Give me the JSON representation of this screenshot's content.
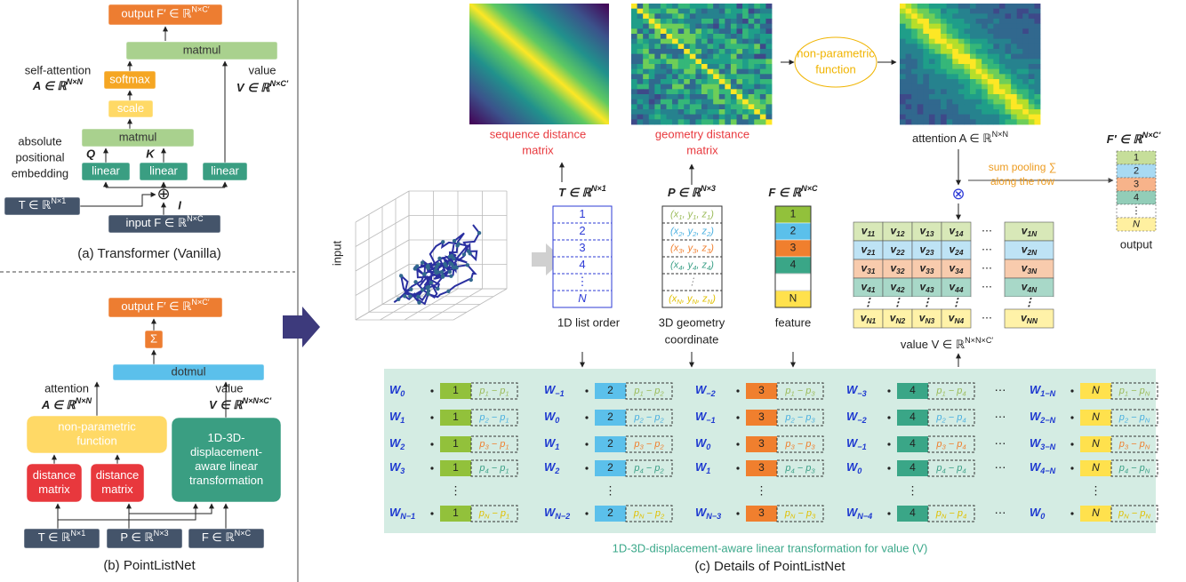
{
  "a": {
    "output": [
      {
        "t": "output F′ ∈ ℝ",
        "sup": "N×C′"
      }
    ],
    "matmul_top": "matmul",
    "softmax": "softmax",
    "scale": "scale",
    "matmul": "matmul",
    "linear": [
      "linear",
      "linear",
      "linear"
    ],
    "attn_label": "self-attention",
    "attn_math": [
      {
        "t": "A ∈ ℝ",
        "sup": "N×N"
      }
    ],
    "value_label": "value",
    "value_math": [
      {
        "t": "V ∈ ℝ",
        "sup": "N×C′"
      }
    ],
    "pos_label": [
      "absolute",
      "positional",
      "embedding"
    ],
    "q": "Q",
    "k": "K",
    "i": "I",
    "oplus": "⊕",
    "t_input": [
      {
        "t": "T ∈ ℝ",
        "sup": "N×1"
      }
    ],
    "f_input": [
      {
        "t": "input F ∈ ℝ",
        "sup": "N×C"
      }
    ],
    "caption": "(a) Transformer (Vanilla)"
  },
  "b": {
    "output": [
      {
        "t": "output F′ ∈ ℝ",
        "sup": "N×C′"
      }
    ],
    "sum": "Σ",
    "dotmul": "dotmul",
    "attn_label": "attention",
    "attn_math": [
      {
        "t": "A ∈ ℝ",
        "sup": "N×N"
      }
    ],
    "value_label": "value",
    "value_math": [
      {
        "t": "V ∈ ℝ",
        "sup": "N×N×C′"
      }
    ],
    "nonparam": [
      "non-parametric",
      "function"
    ],
    "transform": [
      "1D-3D-",
      "displacement-",
      "aware linear",
      "transformation"
    ],
    "dist": [
      [
        "distance",
        "matrix"
      ],
      [
        "distance",
        "matrix"
      ]
    ],
    "inputs": [
      [
        {
          "t": "T ∈ ℝ",
          "sup": "N×1"
        }
      ],
      [
        {
          "t": "P ∈ ℝ",
          "sup": "N×3"
        }
      ],
      [
        {
          "t": "F ∈ ℝ",
          "sup": "N×C"
        }
      ]
    ],
    "caption": "(b) PointListNet"
  },
  "c": {
    "seq_label": [
      "sequence distance",
      "matrix"
    ],
    "geo_label": [
      "geometry distance",
      "matrix"
    ],
    "nonparam": [
      "non-parametric",
      "function"
    ],
    "attention": [
      {
        "t": "attention A ∈ ℝ",
        "sup": "N×N"
      }
    ],
    "input_label": "input",
    "t_head": [
      {
        "t": "T ∈ ℝ",
        "sup": "N×1"
      }
    ],
    "t_cells": [
      "1",
      "2",
      "3",
      "4",
      "⋮",
      "N"
    ],
    "t_caption": "1D list order",
    "p_head": [
      {
        "t": "P ∈ ℝ",
        "sup": "N×3"
      }
    ],
    "p_cells": [
      [
        {
          "t": "(x",
          "sub": "1"
        },
        {
          "t": ", y",
          "sub": "1"
        },
        {
          "t": ", z",
          "sub": "1"
        },
        {
          "t": ")"
        }
      ],
      [
        {
          "t": "(x",
          "sub": "2"
        },
        {
          "t": ", y",
          "sub": "2"
        },
        {
          "t": ", z",
          "sub": "2"
        },
        {
          "t": ")"
        }
      ],
      [
        {
          "t": "(x",
          "sub": "3"
        },
        {
          "t": ", y",
          "sub": "3"
        },
        {
          "t": ", z",
          "sub": "3"
        },
        {
          "t": ")"
        }
      ],
      [
        {
          "t": "(x",
          "sub": "4"
        },
        {
          "t": ", y",
          "sub": "4"
        },
        {
          "t": ", z",
          "sub": "4"
        },
        {
          "t": ")"
        }
      ],
      "⋮",
      [
        {
          "t": "(x",
          "sub": "N"
        },
        {
          "t": ", y",
          "sub": "N"
        },
        {
          "t": ", z",
          "sub": "N"
        },
        {
          "t": ")"
        }
      ]
    ],
    "p_caption": [
      "3D geometry",
      "coordinate"
    ],
    "f_head": [
      {
        "t": "F ∈ ℝ",
        "sup": "N×C"
      }
    ],
    "f_cells": [
      "1",
      "2",
      "3",
      "4",
      "N"
    ],
    "f_caption": "feature",
    "otimes": "⊗",
    "pooling": [
      "sum pooling ∑",
      "along the row"
    ],
    "v_rows": [
      {
        "cells": [
          [
            {
              "t": "v",
              "sub": "11"
            }
          ],
          [
            {
              "t": "v",
              "sub": "12"
            }
          ],
          [
            {
              "t": "v",
              "sub": "13"
            }
          ],
          [
            {
              "t": "v",
              "sub": "14"
            }
          ]
        ],
        "dots": "⋯",
        "last": [
          {
            "t": "v",
            "sub": "1N"
          }
        ]
      },
      {
        "cells": [
          [
            {
              "t": "v",
              "sub": "21"
            }
          ],
          [
            {
              "t": "v",
              "sub": "22"
            }
          ],
          [
            {
              "t": "v",
              "sub": "23"
            }
          ],
          [
            {
              "t": "v",
              "sub": "24"
            }
          ]
        ],
        "dots": "⋯",
        "last": [
          {
            "t": "v",
            "sub": "2N"
          }
        ]
      },
      {
        "cells": [
          [
            {
              "t": "v",
              "sub": "31"
            }
          ],
          [
            {
              "t": "v",
              "sub": "32"
            }
          ],
          [
            {
              "t": "v",
              "sub": "33"
            }
          ],
          [
            {
              "t": "v",
              "sub": "34"
            }
          ]
        ],
        "dots": "⋯",
        "last": [
          {
            "t": "v",
            "sub": "3N"
          }
        ]
      },
      {
        "cells": [
          [
            {
              "t": "v",
              "sub": "41"
            }
          ],
          [
            {
              "t": "v",
              "sub": "42"
            }
          ],
          [
            {
              "t": "v",
              "sub": "43"
            }
          ],
          [
            {
              "t": "v",
              "sub": "44"
            }
          ]
        ],
        "dots": "⋯",
        "last": [
          {
            "t": "v",
            "sub": "4N"
          }
        ]
      },
      {
        "cells": [
          "⋮",
          "⋮",
          "⋮",
          "⋮"
        ],
        "last": "⋮"
      },
      {
        "cells": [
          [
            {
              "t": "v",
              "sub": "N1"
            }
          ],
          [
            {
              "t": "v",
              "sub": "N2"
            }
          ],
          [
            {
              "t": "v",
              "sub": "N3"
            }
          ],
          [
            {
              "t": "v",
              "sub": "N4"
            }
          ]
        ],
        "dots": "⋯",
        "last": [
          {
            "t": "v",
            "sub": "NN"
          }
        ]
      }
    ],
    "v_caption": [
      {
        "t": "value V ∈ ℝ",
        "sup": "N×N×C′"
      }
    ],
    "out_head": [
      {
        "t": "F′ ∈ ℝ",
        "sup": "N×C′"
      }
    ],
    "out_cells": [
      "1",
      "2",
      "3",
      "4",
      "⋮",
      "N"
    ],
    "out_caption": "output",
    "groups": [
      {
        "num": "1",
        "w": [
          [
            {
              "t": "W",
              "sub": "0"
            }
          ],
          [
            {
              "t": "W",
              "sub": "1"
            }
          ],
          [
            {
              "t": "W",
              "sub": "2"
            }
          ],
          [
            {
              "t": "W",
              "sub": "3"
            }
          ],
          [
            {
              "t": "W",
              "sub": "N−1"
            }
          ]
        ],
        "d": [
          [
            {
              "t": "p",
              "sub": "1"
            },
            {
              "t": " − p",
              "sub": "1"
            }
          ],
          [
            {
              "t": "p",
              "sub": "2"
            },
            {
              "t": " − p",
              "sub": "1"
            }
          ],
          [
            {
              "t": "p",
              "sub": "3"
            },
            {
              "t": " − p",
              "sub": "1"
            }
          ],
          [
            {
              "t": "p",
              "sub": "4"
            },
            {
              "t": " − p",
              "sub": "1"
            }
          ],
          [
            {
              "t": "p",
              "sub": "N"
            },
            {
              "t": " − p",
              "sub": "1"
            }
          ]
        ],
        "vdots": "⋮"
      },
      {
        "num": "2",
        "w": [
          [
            {
              "t": "W",
              "sub": "−1"
            }
          ],
          [
            {
              "t": "W",
              "sub": "0"
            }
          ],
          [
            {
              "t": "W",
              "sub": "1"
            }
          ],
          [
            {
              "t": "W",
              "sub": "2"
            }
          ],
          [
            {
              "t": "W",
              "sub": "N−2"
            }
          ]
        ],
        "d": [
          [
            {
              "t": "p",
              "sub": "1"
            },
            {
              "t": " − p",
              "sub": "2"
            }
          ],
          [
            {
              "t": "p",
              "sub": "2"
            },
            {
              "t": " − p",
              "sub": "2"
            }
          ],
          [
            {
              "t": "p",
              "sub": "3"
            },
            {
              "t": " − p",
              "sub": "2"
            }
          ],
          [
            {
              "t": "p",
              "sub": "4"
            },
            {
              "t": " − p",
              "sub": "2"
            }
          ],
          [
            {
              "t": "p",
              "sub": "N"
            },
            {
              "t": " − p",
              "sub": "2"
            }
          ]
        ],
        "vdots": "⋮"
      },
      {
        "num": "3",
        "w": [
          [
            {
              "t": "W",
              "sub": "−2"
            }
          ],
          [
            {
              "t": "W",
              "sub": "−1"
            }
          ],
          [
            {
              "t": "W",
              "sub": "0"
            }
          ],
          [
            {
              "t": "W",
              "sub": "1"
            }
          ],
          [
            {
              "t": "W",
              "sub": "N−3"
            }
          ]
        ],
        "d": [
          [
            {
              "t": "p",
              "sub": "1"
            },
            {
              "t": " − p",
              "sub": "3"
            }
          ],
          [
            {
              "t": "p",
              "sub": "2"
            },
            {
              "t": " − p",
              "sub": "3"
            }
          ],
          [
            {
              "t": "p",
              "sub": "3"
            },
            {
              "t": " − p",
              "sub": "3"
            }
          ],
          [
            {
              "t": "p",
              "sub": "4"
            },
            {
              "t": " − p",
              "sub": "3"
            }
          ],
          [
            {
              "t": "p",
              "sub": "N"
            },
            {
              "t": " − p",
              "sub": "3"
            }
          ]
        ],
        "vdots": "⋮"
      },
      {
        "num": "4",
        "w": [
          [
            {
              "t": "W",
              "sub": "−3"
            }
          ],
          [
            {
              "t": "W",
              "sub": "−2"
            }
          ],
          [
            {
              "t": "W",
              "sub": "−1"
            }
          ],
          [
            {
              "t": "W",
              "sub": "0"
            }
          ],
          [
            {
              "t": "W",
              "sub": "N−4"
            }
          ]
        ],
        "d": [
          [
            {
              "t": "p",
              "sub": "1"
            },
            {
              "t": " − p",
              "sub": "4"
            }
          ],
          [
            {
              "t": "p",
              "sub": "2"
            },
            {
              "t": " − p",
              "sub": "4"
            }
          ],
          [
            {
              "t": "p",
              "sub": "3"
            },
            {
              "t": " − p",
              "sub": "4"
            }
          ],
          [
            {
              "t": "p",
              "sub": "4"
            },
            {
              "t": " − p",
              "sub": "4"
            }
          ],
          [
            {
              "t": "p",
              "sub": "N"
            },
            {
              "t": " − p",
              "sub": "4"
            }
          ]
        ],
        "vdots": "⋮"
      },
      {
        "num": "N",
        "w": [
          [
            {
              "t": "W",
              "sub": "1−N"
            }
          ],
          [
            {
              "t": "W",
              "sub": "2−N"
            }
          ],
          [
            {
              "t": "W",
              "sub": "3−N"
            }
          ],
          [
            {
              "t": "W",
              "sub": "4−N"
            }
          ],
          [
            {
              "t": "W",
              "sub": "0"
            }
          ]
        ],
        "d": [
          [
            {
              "t": "p",
              "sub": "1"
            },
            {
              "t": " − p",
              "sub": "N"
            }
          ],
          [
            {
              "t": "p",
              "sub": "2"
            },
            {
              "t": " − p",
              "sub": "N"
            }
          ],
          [
            {
              "t": "p",
              "sub": "3"
            },
            {
              "t": " − p",
              "sub": "N"
            }
          ],
          [
            {
              "t": "p",
              "sub": "4"
            },
            {
              "t": " − p",
              "sub": "N"
            }
          ],
          [
            {
              "t": "p",
              "sub": "N"
            },
            {
              "t": " − p",
              "sub": "N"
            }
          ]
        ],
        "vdots": "⋮"
      }
    ],
    "hdots": [
      "⋯",
      "⋯",
      "⋯",
      "⋯",
      "⋯"
    ],
    "panel_caption": "1D-3D-displacement-aware linear transformation for value (V)",
    "caption": "(c) Details of PointListNet"
  }
}
